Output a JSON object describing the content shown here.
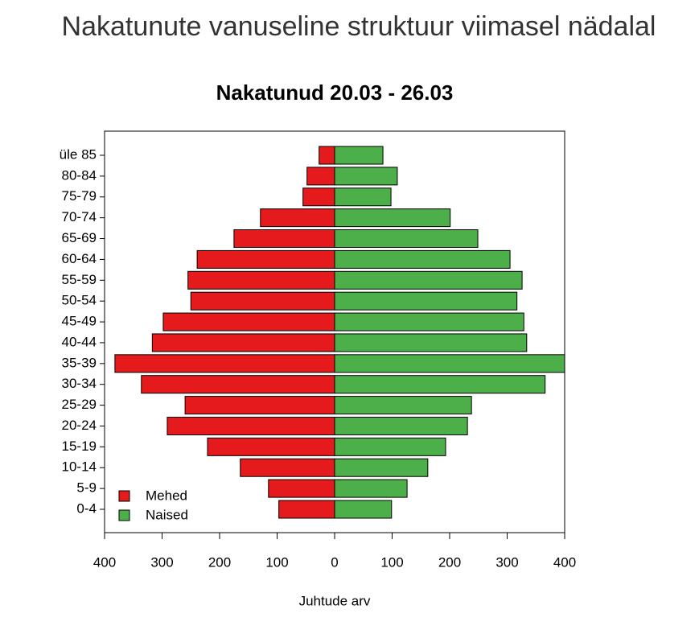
{
  "page_title": "Nakatunute vanuseline struktuur viimasel nädalal",
  "chart_data": {
    "type": "pyramid",
    "title": "Nakatunud 20.03 - 26.03",
    "x_label": "Juhtude arv",
    "categories": [
      "0-4",
      "5-9",
      "10-14",
      "15-19",
      "20-24",
      "25-29",
      "30-34",
      "35-39",
      "40-44",
      "45-49",
      "50-54",
      "55-59",
      "60-64",
      "65-69",
      "70-74",
      "75-79",
      "80-84",
      "üle 85"
    ],
    "series": [
      {
        "name": "Mehed",
        "color": "#e41a1c",
        "values": [
          -97,
          -115,
          -164,
          -221,
          -291,
          -260,
          -336,
          -382,
          -317,
          -298,
          -250,
          -255,
          -239,
          -175,
          -129,
          -55,
          -48,
          -27
        ]
      },
      {
        "name": "Naised",
        "color": "#4daf4a",
        "values": [
          99,
          126,
          162,
          193,
          231,
          238,
          366,
          400,
          334,
          329,
          317,
          326,
          305,
          249,
          201,
          98,
          109,
          84
        ]
      }
    ],
    "xlim": [
      -400,
      400
    ],
    "xticks": [
      {
        "value": -400,
        "label": "400"
      },
      {
        "value": -300,
        "label": "300"
      },
      {
        "value": -200,
        "label": "200"
      },
      {
        "value": -100,
        "label": "100"
      },
      0,
      100,
      200,
      300,
      400
    ],
    "legend": "bottom-left"
  }
}
